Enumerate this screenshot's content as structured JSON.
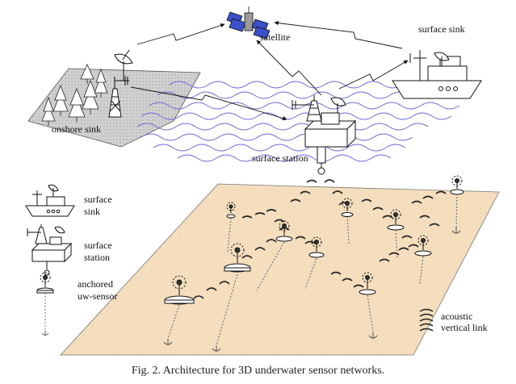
{
  "labels": {
    "satellite": "satellite",
    "surface_sink": "surface sink",
    "onshore_sink": "onshore sink",
    "surface_station": "surface station"
  },
  "legend": {
    "surface_sink": [
      "surface",
      "sink"
    ],
    "surface_station": [
      "surface",
      "station"
    ],
    "anchored_sensor": [
      "anchored",
      "uw-sensor"
    ],
    "acoustic_link": [
      "acoustic",
      "vertical link"
    ]
  },
  "caption": "Fig. 2.  Architecture for 3D underwater sensor networks."
}
